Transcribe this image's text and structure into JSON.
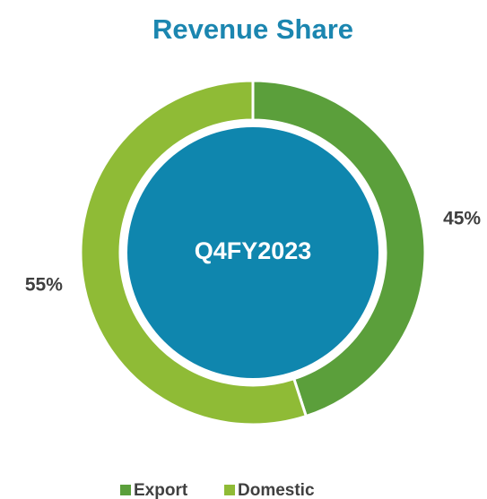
{
  "chart_data": {
    "type": "donut",
    "title": "Revenue Share",
    "center_label": "Q4FY2023",
    "categories": [
      "Export",
      "Domestic"
    ],
    "values": [
      45,
      55
    ],
    "value_labels": [
      "45%",
      "55%"
    ],
    "colors": [
      "#5b9f3b",
      "#8fbb36"
    ],
    "center_color": "#0f86ae",
    "legend": "bottom"
  }
}
